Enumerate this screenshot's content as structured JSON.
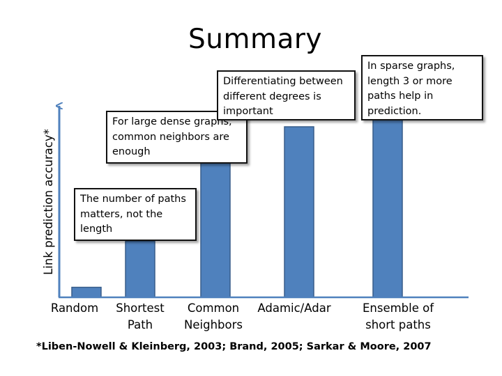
{
  "slide": {
    "title": "Summary",
    "footnote": "*Liben-Nowell & Kleinberg, 2003; Brand, 2005;  Sarkar & Moore, 2007"
  },
  "chart_data": {
    "type": "bar",
    "title": "",
    "xlabel": "",
    "ylabel": "Link prediction accuracy*",
    "categories": [
      "Random",
      "Shortest Path",
      "Common Neighbors",
      "Adamic/Adar",
      "Ensemble of short paths"
    ],
    "values": [
      0.05,
      0.28,
      0.78,
      0.85,
      1.0
    ],
    "ylim": [
      0,
      1.1
    ],
    "bar_color": "#4f81bd",
    "bar_edge_color": "#385d8a",
    "axis_color": "#4f81bd",
    "grid": false,
    "legend": "none"
  },
  "callouts": [
    {
      "id": "paths",
      "text": "The number of paths matters, not the length"
    },
    {
      "id": "dense",
      "text": "For large dense graphs, common neighbors are enough"
    },
    {
      "id": "degrees",
      "text": "Differentiating between different degrees is important"
    },
    {
      "id": "sparse",
      "text": "In sparse graphs, length 3 or more paths help in prediction."
    }
  ]
}
